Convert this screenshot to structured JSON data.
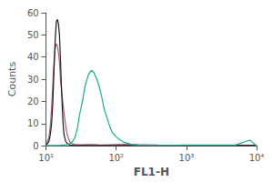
{
  "chart_data": {
    "type": "line",
    "xlabel": "FL1-H",
    "ylabel": "Counts",
    "log": "x",
    "xlim": [
      10,
      10000
    ],
    "xticks": [
      {
        "value": 10,
        "label": "10¹"
      },
      {
        "value": 100,
        "label": "10²"
      },
      {
        "value": 1000,
        "label": "10³"
      },
      {
        "value": 10000,
        "label": "10⁴"
      }
    ],
    "ylim": [
      0,
      60
    ],
    "yticks": [
      0,
      10,
      20,
      30,
      40,
      50,
      60
    ],
    "grid": false,
    "series": [
      {
        "color": "#b05878",
        "x": [
          10,
          10.5,
          11,
          11.5,
          12,
          12.5,
          13,
          13.5,
          14,
          14.5,
          15,
          15.5,
          16,
          17,
          18,
          19,
          20,
          21,
          22,
          24,
          26,
          28,
          32,
          38,
          45,
          55,
          70,
          100,
          150,
          200,
          400,
          700,
          1200,
          3000,
          10000
        ],
        "values": [
          1,
          2,
          4,
          9,
          17,
          28,
          38,
          44,
          46,
          45,
          42,
          38,
          30,
          22,
          15,
          9,
          5,
          3,
          1.5,
          0.8,
          0.5,
          0.4,
          0.4,
          0.5,
          0.5,
          0.4,
          0.3,
          0.5,
          0.6,
          0.5,
          0.3,
          0.2,
          0.2,
          0.2,
          0.2
        ]
      },
      {
        "color": "#1a1a1a",
        "x": [
          10,
          10.5,
          11,
          11.5,
          12,
          12.5,
          13,
          13.5,
          14,
          14.5,
          15,
          15.5,
          16,
          16.5,
          17,
          17.5,
          18,
          19,
          20,
          21,
          22,
          24,
          27,
          30,
          35,
          40,
          50,
          70,
          100,
          200,
          500,
          1000,
          10000
        ],
        "values": [
          0.5,
          1,
          2,
          5,
          10,
          20,
          35,
          48,
          56,
          57,
          55,
          50,
          40,
          28,
          18,
          10,
          5,
          2,
          1,
          0.5,
          0.3,
          0.2,
          0.1,
          0.1,
          0.1,
          0.1,
          0.1,
          0.1,
          0.1,
          0.1,
          0.1,
          0.1,
          0.1
        ]
      },
      {
        "color": "#1aaa90",
        "x": [
          10,
          12,
          14,
          16,
          18,
          20,
          22,
          24,
          26,
          28,
          30,
          33,
          36,
          40,
          44,
          48,
          53,
          58,
          63,
          68,
          75,
          82,
          90,
          100,
          115,
          130,
          150,
          170,
          200,
          250,
          300,
          400,
          500,
          700,
          1000,
          2000,
          5000,
          8000,
          9500,
          10000
        ],
        "values": [
          0.1,
          0.1,
          0.1,
          0.2,
          0.3,
          0.5,
          1.0,
          2.0,
          4.0,
          8.0,
          14,
          20,
          27,
          32,
          34,
          33,
          30,
          26,
          21,
          16,
          12,
          8,
          5.5,
          4.0,
          2.5,
          1.5,
          0.9,
          0.5,
          0.3,
          0.2,
          0.2,
          0.2,
          0.2,
          0.2,
          0.3,
          0.3,
          0.3,
          2.5,
          0.5,
          0.1
        ]
      }
    ]
  }
}
